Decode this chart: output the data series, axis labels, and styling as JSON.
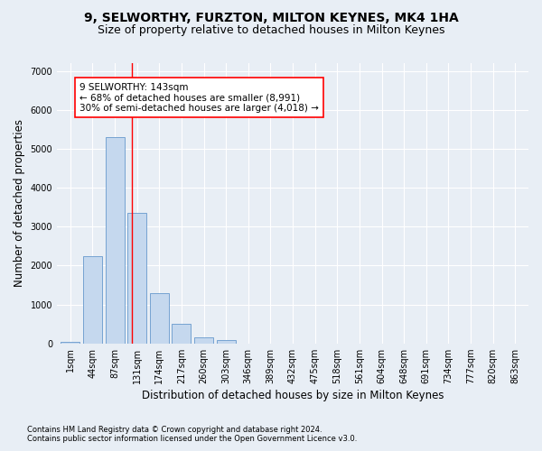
{
  "title": "9, SELWORTHY, FURZTON, MILTON KEYNES, MK4 1HA",
  "subtitle": "Size of property relative to detached houses in Milton Keynes",
  "xlabel": "Distribution of detached houses by size in Milton Keynes",
  "ylabel": "Number of detached properties",
  "footer_line1": "Contains HM Land Registry data © Crown copyright and database right 2024.",
  "footer_line2": "Contains public sector information licensed under the Open Government Licence v3.0.",
  "bar_labels": [
    "1sqm",
    "44sqm",
    "87sqm",
    "131sqm",
    "174sqm",
    "217sqm",
    "260sqm",
    "303sqm",
    "346sqm",
    "389sqm",
    "432sqm",
    "475sqm",
    "518sqm",
    "561sqm",
    "604sqm",
    "648sqm",
    "691sqm",
    "734sqm",
    "777sqm",
    "820sqm",
    "863sqm"
  ],
  "bar_values": [
    50,
    2250,
    5300,
    3350,
    1300,
    500,
    150,
    75,
    0,
    0,
    0,
    0,
    0,
    0,
    0,
    0,
    0,
    0,
    0,
    0,
    0
  ],
  "bar_color": "#c5d8ee",
  "bar_edge_color": "#6699cc",
  "vline_x": 2.75,
  "vline_color": "red",
  "annotation_line1": "9 SELWORTHY: 143sqm",
  "annotation_line2": "← 68% of detached houses are smaller (8,991)",
  "annotation_line3": "30% of semi-detached houses are larger (4,018) →",
  "annotation_box_color": "white",
  "annotation_box_edge_color": "red",
  "ylim": [
    0,
    7200
  ],
  "yticks": [
    0,
    1000,
    2000,
    3000,
    4000,
    5000,
    6000,
    7000
  ],
  "bg_color": "#e8eef5",
  "plot_bg_color": "#e8eef5",
  "grid_color": "white",
  "title_fontsize": 10,
  "subtitle_fontsize": 9,
  "axis_label_fontsize": 8.5,
  "tick_fontsize": 7,
  "annotation_fontsize": 7.5,
  "footer_fontsize": 6
}
